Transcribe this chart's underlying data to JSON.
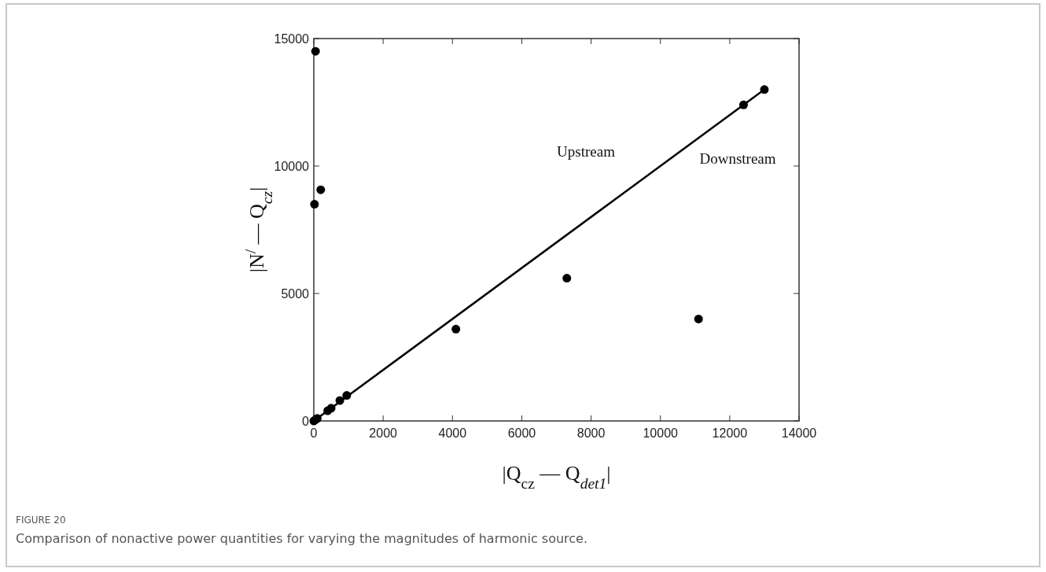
{
  "chart_data": {
    "type": "scatter",
    "xlabel": "|Q$_{cz}$ — Q$_{det1}$|",
    "ylabel": "|N$^{/}$ — Q$_{cz}$|",
    "xlim": [
      0,
      14000
    ],
    "xticks": [
      0,
      2000,
      4000,
      6000,
      8000,
      10000,
      12000,
      14000
    ],
    "ylim": [
      0,
      15000
    ],
    "yticks": [
      0,
      5000,
      10000,
      15000
    ],
    "grid": false,
    "series": [
      {
        "type": "line",
        "color": "#000000",
        "marker": "none",
        "line_style": "solid",
        "x": [
          0,
          13000
        ],
        "values": [
          0,
          13000
        ]
      },
      {
        "color": "#000000",
        "marker": "circle",
        "x": [
          50,
          200,
          20,
          0,
          50,
          100,
          400,
          500,
          750,
          950,
          4100,
          7300,
          11100,
          12400,
          13000
        ],
        "values": [
          14500,
          9070,
          8500,
          0,
          50,
          100,
          400,
          500,
          800,
          1000,
          3600,
          5600,
          4000,
          12400,
          13000
        ]
      }
    ],
    "annotations": [
      "Upstream",
      "Downstream",
      "FIGURE 20",
      "Comparison of nonactive power quantities for varying the magnitudes of harmonic source."
    ]
  }
}
